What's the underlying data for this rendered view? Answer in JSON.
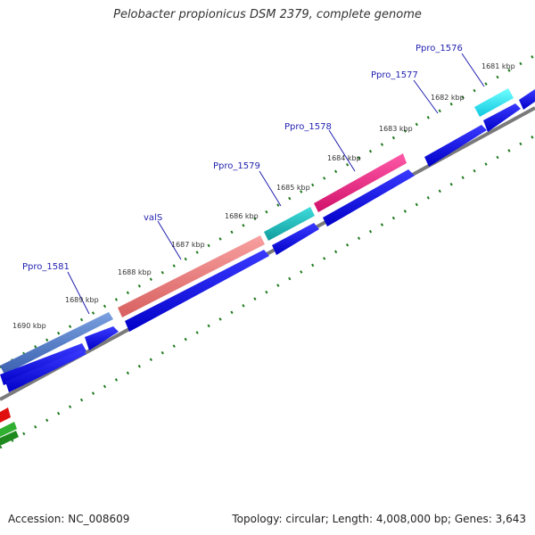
{
  "title": "Pelobacter propionicus DSM 2379, complete genome",
  "footer": {
    "accession": "Accession: NC_008609",
    "summary": "Topology: circular; Length: 4,008,000 bp; Genes: 3,643"
  },
  "colors": {
    "background": "#ffffff",
    "backbone": "#808080",
    "tick": "#1e7a1e",
    "cds_blue": "#1010e6",
    "label_text": "#1f1fb0"
  },
  "kbp_labels": [
    "1681 kbp",
    "1682 kbp",
    "1683 kbp",
    "1684 kbp",
    "1685 kbp",
    "1686 kbp",
    "1687 kbp",
    "1688 kbp",
    "1689 kbp",
    "1690 kbp"
  ],
  "gene_labels": [
    "Ppro_1576",
    "Ppro_1577",
    "Ppro_1578",
    "Ppro_1579",
    "valS",
    "Ppro_1581"
  ],
  "features": [
    {
      "name": "Ppro_1576",
      "color": "#22e0e8"
    },
    {
      "name": "Ppro_1578",
      "color": "#e8207a"
    },
    {
      "name": "Ppro_1579",
      "color": "#20bcbc"
    },
    {
      "name": "valS",
      "color": "#e87878"
    },
    {
      "name": "Ppro_1581",
      "color": "#4a78c0"
    }
  ]
}
